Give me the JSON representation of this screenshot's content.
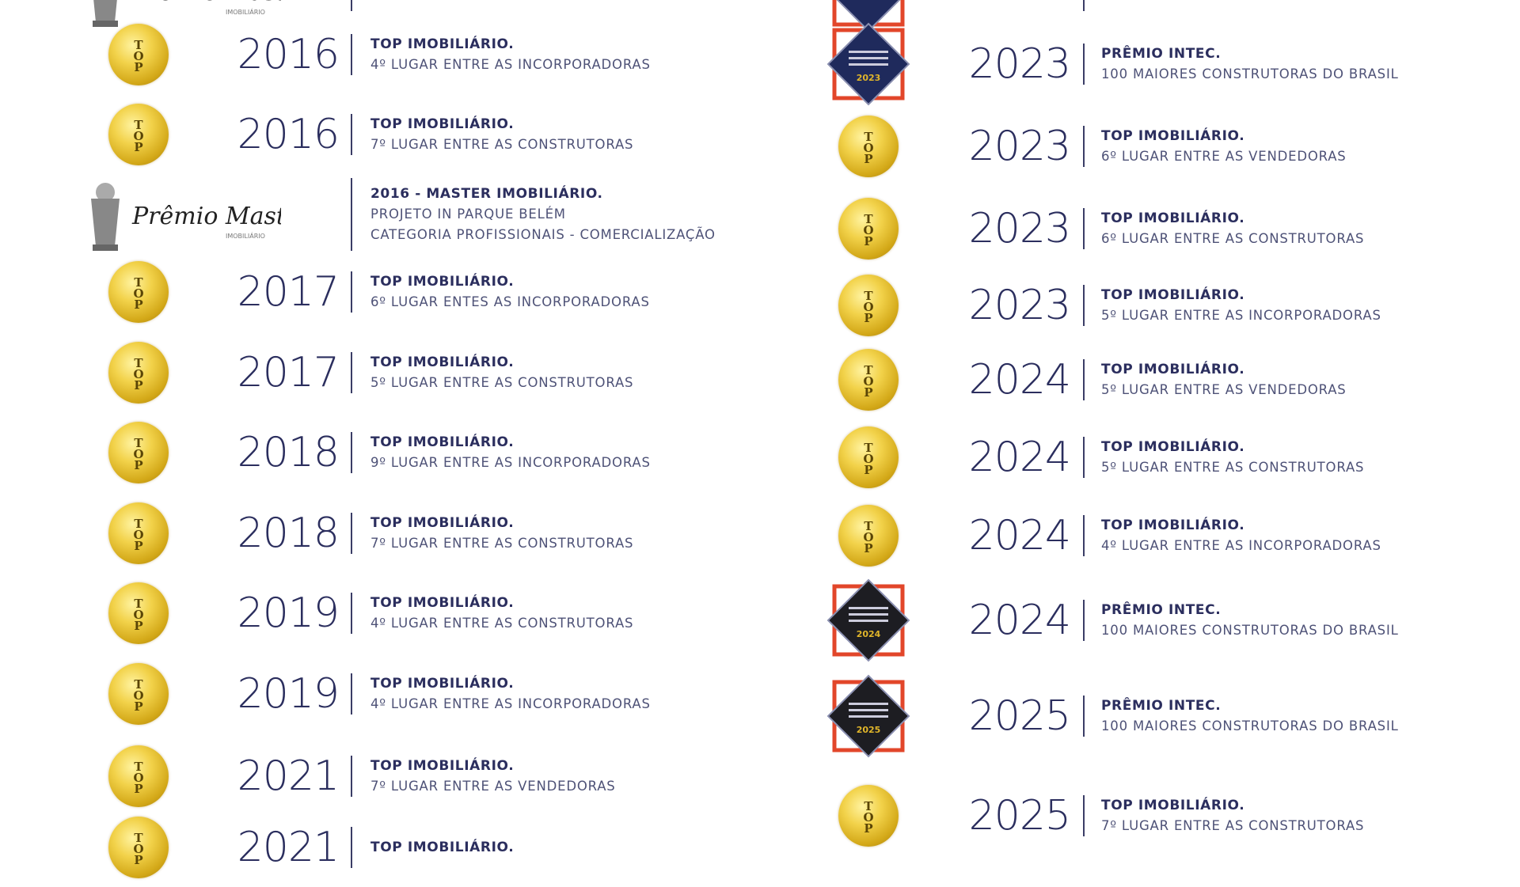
{
  "colors": {
    "navy": "#2b2e5e",
    "gold": "#e0b52a",
    "intec_red": "#e2462a"
  },
  "left": [
    {
      "icon": "master",
      "year": "",
      "title": "",
      "lines": []
    },
    {
      "icon": "top-medal",
      "year": "2016",
      "title": "TOP IMOBILIÁRIO.",
      "lines": [
        "4º LUGAR ENTRE AS INCORPORADORAS"
      ]
    },
    {
      "icon": "top-medal",
      "year": "2016",
      "title": "TOP IMOBILIÁRIO.",
      "lines": [
        "7º LUGAR ENTRE AS CONSTRUTORAS"
      ]
    },
    {
      "icon": "master",
      "year": "",
      "title": "2016 - MASTER IMOBILIÁRIO.",
      "lines": [
        "PROJETO IN PARQUE BELÉM",
        "CATEGORIA PROFISSIONAIS - COMERCIALIZAÇÃO"
      ],
      "logo": "Prêmio Master IMOBILIÁRIO"
    },
    {
      "icon": "top-medal",
      "year": "2017",
      "title": "TOP IMOBILIÁRIO.",
      "lines": [
        "6º LUGAR ENTES AS INCORPORADORAS"
      ]
    },
    {
      "icon": "top-medal",
      "year": "2017",
      "title": "TOP IMOBILIÁRIO.",
      "lines": [
        "5º LUGAR ENTRE AS CONSTRUTORAS"
      ]
    },
    {
      "icon": "top-medal",
      "year": "2018",
      "title": "TOP IMOBILIÁRIO.",
      "lines": [
        "9º LUGAR ENTRE AS INCORPORADORAS"
      ]
    },
    {
      "icon": "top-medal",
      "year": "2018",
      "title": "TOP IMOBILIÁRIO.",
      "lines": [
        "7º LUGAR ENTRE AS CONSTRUTORAS"
      ]
    },
    {
      "icon": "top-medal",
      "year": "2019",
      "title": "TOP IMOBILIÁRIO.",
      "lines": [
        "4º LUGAR ENTRE AS CONSTRUTORAS"
      ]
    },
    {
      "icon": "top-medal",
      "year": "2019",
      "title": "TOP IMOBILIÁRIO.",
      "lines": [
        "4º LUGAR ENTRE AS INCORPORADORAS"
      ]
    },
    {
      "icon": "top-medal",
      "year": "2021",
      "title": "TOP IMOBILIÁRIO.",
      "lines": [
        "7º LUGAR ENTRE AS VENDEDORAS"
      ]
    },
    {
      "icon": "top-medal",
      "year": "2021",
      "title": "TOP IMOBILIÁRIO.",
      "lines": []
    }
  ],
  "right": [
    {
      "icon": "intec",
      "year": "",
      "title": "",
      "lines": []
    },
    {
      "icon": "intec",
      "year": "2023",
      "title": "PRÊMIO INTEC.",
      "lines": [
        "100 MAIORES CONSTRUTORAS DO BRASIL"
      ],
      "badge_year": "2023"
    },
    {
      "icon": "top-medal",
      "year": "2023",
      "title": "TOP IMOBILIÁRIO.",
      "lines": [
        "6º LUGAR ENTRE AS VENDEDORAS"
      ]
    },
    {
      "icon": "top-medal",
      "year": "2023",
      "title": "TOP IMOBILIÁRIO.",
      "lines": [
        "6º LUGAR ENTRE AS CONSTRUTORAS"
      ]
    },
    {
      "icon": "top-medal",
      "year": "2023",
      "title": "TOP IMOBILIÁRIO.",
      "lines": [
        "5º LUGAR ENTRE AS INCORPORADORAS"
      ]
    },
    {
      "icon": "top-medal",
      "year": "2024",
      "title": "TOP IMOBILIÁRIO.",
      "lines": [
        "5º LUGAR ENTRE AS VENDEDORAS"
      ]
    },
    {
      "icon": "top-medal",
      "year": "2024",
      "title": "TOP IMOBILIÁRIO.",
      "lines": [
        "5º LUGAR ENTRE AS CONSTRUTORAS"
      ]
    },
    {
      "icon": "top-medal",
      "year": "2024",
      "title": "TOP IMOBILIÁRIO.",
      "lines": [
        "4º LUGAR ENTRE AS INCORPORADORAS"
      ]
    },
    {
      "icon": "intec-dark",
      "year": "2024",
      "title": "PRÊMIO INTEC.",
      "lines": [
        "100 MAIORES CONSTRUTORAS DO BRASIL"
      ],
      "badge_year": "2024"
    },
    {
      "icon": "intec-dark",
      "year": "2025",
      "title": "PRÊMIO INTEC.",
      "lines": [
        "100 MAIORES CONSTRUTORAS DO BRASIL"
      ],
      "badge_year": "2025"
    },
    {
      "icon": "top-medal",
      "year": "2025",
      "title": "TOP IMOBILIÁRIO.",
      "lines": [
        "7º LUGAR ENTRE AS CONSTRUTORAS"
      ]
    }
  ]
}
